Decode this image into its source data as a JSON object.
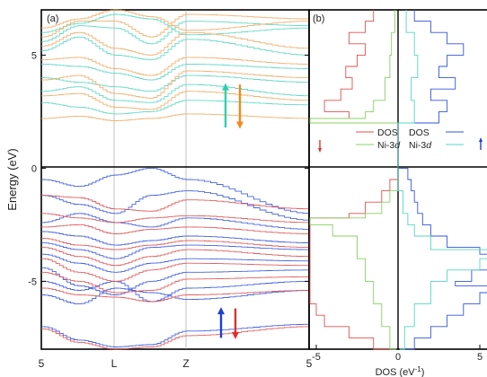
{
  "chart_data": [
    {
      "type": "line",
      "panel_label": "(a)",
      "ylabel": "Energy (eV)",
      "ylim": [
        -8,
        7
      ],
      "yticks": [
        "5",
        "0",
        "-5"
      ],
      "xticks": [
        "5",
        "L",
        "Z",
        "5"
      ],
      "xtick_positions": [
        0,
        1,
        2,
        3
      ],
      "high_symmetry_lines": [
        1,
        2
      ],
      "spin_up_arrow_colors": [
        "#2ecfb0",
        "#1f3fd0"
      ],
      "spin_down_arrow_colors": [
        "#f08a1c",
        "#e0302a"
      ],
      "series": [
        {
          "name": "spin-up conduction",
          "color": "#55d6c0",
          "bands": [
            [
              6.0,
              6.4,
              6.8,
              6.6,
              5.9,
              6.2
            ],
            [
              5.6,
              6.3,
              6.2,
              5.5,
              6.5,
              6.3
            ],
            [
              5.2,
              5.8,
              5.0,
              4.8,
              5.7,
              5.0
            ],
            [
              4.6,
              4.5,
              4.2,
              3.9,
              4.6,
              4.4
            ],
            [
              4.0,
              3.8,
              3.6,
              3.4,
              4.1,
              3.8
            ],
            [
              3.4,
              3.6,
              3.0,
              2.9,
              3.7,
              3.2
            ],
            [
              2.9,
              2.7,
              2.4,
              2.5,
              3.0,
              2.8
            ]
          ]
        },
        {
          "name": "spin-down conduction",
          "color": "#f0a860",
          "bands": [
            [
              6.2,
              6.6,
              7.0,
              6.7,
              6.1,
              6.5
            ],
            [
              5.8,
              6.5,
              6.5,
              5.8,
              6.8,
              6.6
            ],
            [
              5.4,
              6.0,
              5.3,
              5.0,
              6.0,
              5.3
            ],
            [
              4.8,
              4.9,
              4.4,
              4.1,
              4.9,
              4.6
            ],
            [
              3.9,
              4.1,
              3.3,
              3.1,
              4.3,
              4.0
            ],
            [
              3.2,
              3.3,
              2.7,
              2.6,
              3.4,
              3.0
            ],
            [
              2.2,
              2.3,
              2.1,
              2.2,
              2.4,
              2.2
            ]
          ]
        },
        {
          "name": "spin-up valence",
          "color": "#3355e0",
          "bands": [
            [
              -0.5,
              -0.8,
              -0.3,
              0.0,
              -0.5,
              -2.0
            ],
            [
              -1.2,
              -1.6,
              -2.0,
              -1.2,
              -1.0,
              -2.3
            ],
            [
              -2.4,
              -2.0,
              -2.4,
              -2.6,
              -2.2,
              -2.7
            ],
            [
              -2.8,
              -3.0,
              -3.4,
              -3.2,
              -3.0,
              -3.3
            ],
            [
              -3.3,
              -3.6,
              -4.0,
              -3.5,
              -3.4,
              -3.6
            ],
            [
              -3.8,
              -4.2,
              -4.6,
              -4.2,
              -4.0,
              -4.1
            ],
            [
              -4.4,
              -5.2,
              -5.6,
              -5.0,
              -4.6,
              -4.5
            ],
            [
              -5.0,
              -5.4,
              -5.0,
              -5.9,
              -5.3,
              -5.0
            ],
            [
              -5.6,
              -6.0,
              -5.3,
              -5.5,
              -5.8,
              -5.4
            ],
            [
              -7.0,
              -7.6,
              -7.9,
              -7.8,
              -7.2,
              -6.9
            ]
          ]
        },
        {
          "name": "spin-down valence",
          "color": "#e05050",
          "bands": [
            [
              -1.2,
              -1.3,
              -1.8,
              -1.9,
              -1.4,
              -1.8
            ],
            [
              -2.0,
              -2.2,
              -2.4,
              -2.2,
              -2.1,
              -2.4
            ],
            [
              -2.6,
              -2.5,
              -2.9,
              -2.7,
              -2.6,
              -2.9
            ],
            [
              -3.1,
              -3.4,
              -3.6,
              -3.4,
              -3.2,
              -3.5
            ],
            [
              -3.5,
              -3.9,
              -4.3,
              -3.9,
              -3.6,
              -3.9
            ],
            [
              -4.0,
              -4.6,
              -5.0,
              -4.5,
              -4.2,
              -4.3
            ],
            [
              -4.6,
              -5.0,
              -5.5,
              -5.4,
              -4.9,
              -4.8
            ],
            [
              -5.3,
              -5.6,
              -5.7,
              -5.9,
              -5.6,
              -5.4
            ],
            [
              -7.1,
              -7.7,
              -8.0,
              -7.9,
              -7.4,
              -7.0
            ]
          ]
        }
      ]
    },
    {
      "type": "line",
      "panel_label": "(b)",
      "xlabel": "DOS (eV-1)",
      "xticks": [
        "-5",
        "0",
        "5"
      ],
      "xlim": [
        -11,
        11
      ],
      "ylim": [
        -8,
        7
      ],
      "legend_spin_down": [
        {
          "name": "DOS",
          "color": "#e05050"
        },
        {
          "name": "Ni-3d",
          "color": "#88d060"
        }
      ],
      "legend_spin_up": [
        {
          "name": "DOS",
          "color": "#3355e0"
        },
        {
          "name": "Ni-3d",
          "color": "#55d6c0"
        }
      ],
      "series": [
        {
          "name": "DOS spin-down",
          "color": "#e05050",
          "energy": [
            -8.0,
            -7.5,
            -7.0,
            -6.5,
            -6.0,
            -5.5,
            -5.0,
            -4.5,
            -4.0,
            -3.5,
            -3.0,
            -2.5,
            -2.2,
            -2.0,
            -1.5,
            -1.0,
            -0.5,
            0.0,
            1.0,
            2.0,
            2.2,
            2.5,
            3.0,
            3.5,
            4.0,
            4.5,
            5.0,
            5.5,
            6.0,
            6.5,
            7.0
          ],
          "values": [
            -0.3,
            -1.5,
            -3.0,
            -4.5,
            -5.0,
            -7.0,
            -6.5,
            -6.0,
            -7.5,
            -8.0,
            -5.5,
            -9.0,
            -10.0,
            -3.0,
            -2.0,
            -1.0,
            -0.5,
            0.0,
            0.0,
            0.0,
            -7.5,
            -3.0,
            -4.5,
            -3.5,
            -2.8,
            -3.2,
            -2.5,
            -2.0,
            -3.0,
            -2.0,
            -1.5
          ]
        },
        {
          "name": "Ni-3d spin-down",
          "color": "#88d060",
          "energy": [
            -8.0,
            -7.0,
            -6.0,
            -5.0,
            -4.0,
            -3.0,
            -2.5,
            -2.2,
            -2.0,
            -1.5,
            -1.0,
            0.0,
            2.0,
            2.2,
            2.5,
            3.0,
            4.0,
            5.0,
            6.0,
            7.0
          ],
          "values": [
            -0.1,
            -0.5,
            -1.0,
            -1.5,
            -2.0,
            -2.5,
            -4.0,
            -8.5,
            -2.0,
            -1.0,
            -0.5,
            0.0,
            0.0,
            -5.5,
            -2.0,
            -1.5,
            -0.8,
            -0.5,
            -0.4,
            -0.2
          ]
        },
        {
          "name": "DOS spin-up",
          "color": "#3355e0",
          "energy": [
            -8.0,
            -7.5,
            -7.0,
            -6.5,
            -6.0,
            -5.5,
            -5.2,
            -5.0,
            -4.5,
            -4.0,
            -3.8,
            -3.5,
            -3.0,
            -2.5,
            -2.0,
            -1.5,
            -1.0,
            -0.5,
            0.0,
            0.5,
            1.0,
            2.0,
            2.5,
            3.0,
            3.5,
            4.0,
            4.5,
            5.0,
            5.5,
            6.0,
            6.5,
            7.0
          ],
          "values": [
            0.3,
            1.0,
            2.0,
            3.0,
            4.0,
            5.0,
            8.0,
            3.5,
            4.5,
            6.0,
            10.5,
            5.0,
            3.0,
            2.0,
            1.5,
            1.2,
            1.0,
            0.8,
            0.6,
            0.0,
            0.0,
            0.0,
            2.5,
            3.0,
            2.0,
            3.5,
            2.5,
            3.0,
            4.0,
            3.0,
            2.0,
            1.0
          ]
        },
        {
          "name": "Ni-3d spin-up",
          "color": "#55d6c0",
          "energy": [
            -8.0,
            -7.0,
            -6.0,
            -5.0,
            -4.5,
            -4.0,
            -3.8,
            -3.6,
            -3.0,
            -2.5,
            -2.0,
            -1.0,
            0.0,
            2.0,
            3.0,
            4.0,
            5.0,
            6.0,
            7.0
          ],
          "values": [
            0.1,
            0.4,
            1.0,
            2.0,
            3.0,
            5.0,
            10.0,
            7.0,
            2.0,
            1.0,
            0.6,
            0.3,
            0.0,
            0.0,
            1.0,
            0.8,
            1.2,
            1.0,
            0.5
          ]
        }
      ]
    }
  ]
}
